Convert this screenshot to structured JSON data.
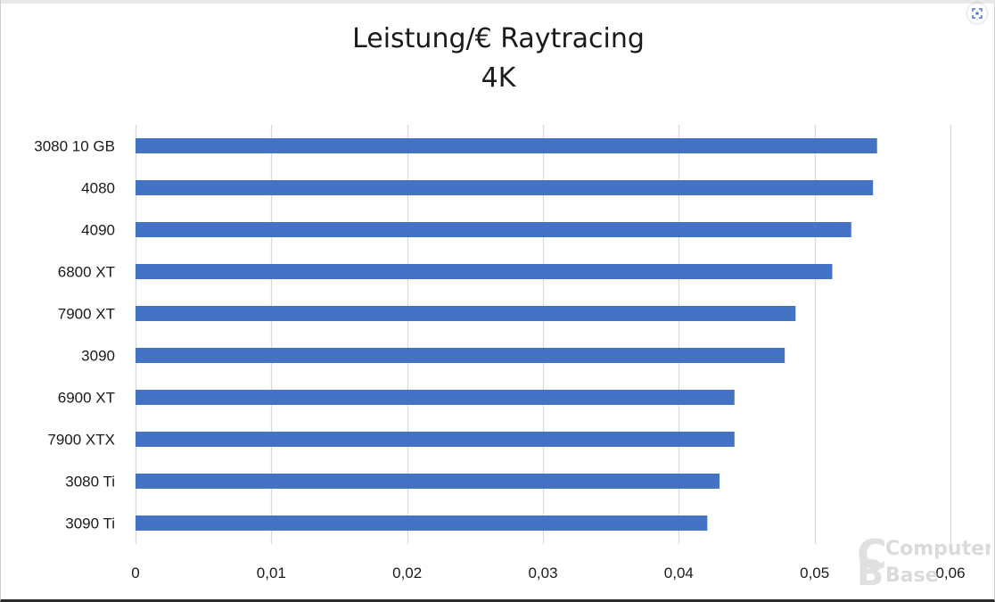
{
  "chart_data": {
    "type": "bar",
    "orientation": "horizontal",
    "title": "Leistung/€ Raytracing",
    "subtitle": "4K",
    "categories": [
      "3080 10 GB",
      "4080",
      "4090",
      "6800 XT",
      "7900 XT",
      "3090",
      "6900 XT",
      "7900 XTX",
      "3080 Ti",
      "3090 Ti"
    ],
    "values": [
      0.0546,
      0.0543,
      0.0527,
      0.0513,
      0.0486,
      0.0478,
      0.0441,
      0.0441,
      0.043,
      0.0421
    ],
    "xlim": [
      0,
      0.06
    ],
    "xticks": [
      0,
      0.01,
      0.02,
      0.03,
      0.04,
      0.05,
      0.06
    ],
    "xtick_labels": [
      "0",
      "0,01",
      "0,02",
      "0,03",
      "0,04",
      "0,05",
      "0,06"
    ],
    "xlabel": "",
    "ylabel": "",
    "grid": true,
    "bar_color": "#4472c4",
    "grid_color": "#d9d9d9"
  },
  "watermark": {
    "line1": "Computer",
    "line2": "Base"
  },
  "icons": {
    "expand": "expand-icon"
  }
}
